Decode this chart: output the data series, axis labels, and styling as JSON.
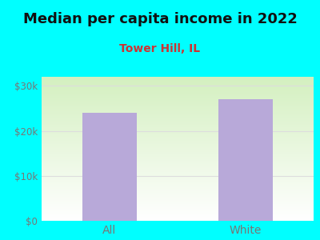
{
  "title": "Median per capita income in 2022",
  "subtitle": "Tower Hill, IL",
  "categories": [
    "All",
    "White"
  ],
  "values": [
    24000,
    27000
  ],
  "bar_color": "#b8a9d9",
  "background_color": "#00FFFF",
  "title_fontsize": 13,
  "subtitle_fontsize": 10,
  "tick_label_color": "#777777",
  "subtitle_color": "#cc3333",
  "title_color": "#111111",
  "ylim": [
    0,
    32000
  ],
  "yticks": [
    0,
    10000,
    20000,
    30000
  ],
  "ytick_labels": [
    "$0",
    "$10k",
    "$20k",
    "$30k"
  ],
  "grid_color": "#dddddd",
  "bar_width": 0.4
}
